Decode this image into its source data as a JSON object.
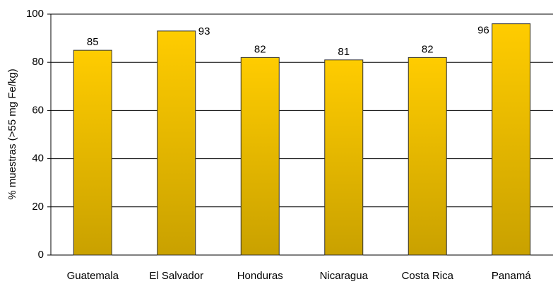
{
  "chart_data": {
    "type": "bar",
    "y_label": "% muestras (>55 mg Fe/kg)",
    "categories": [
      "Guatemala",
      "El Salvador",
      "Honduras",
      "Nicaragua",
      "Costa Rica",
      "Panamá"
    ],
    "values": [
      85,
      93,
      82,
      81,
      82,
      96
    ],
    "color": "#ffcc00",
    "ylim": [
      0,
      100
    ],
    "yticks": [
      0,
      20,
      40,
      60,
      80,
      100
    ],
    "grid": true
  }
}
